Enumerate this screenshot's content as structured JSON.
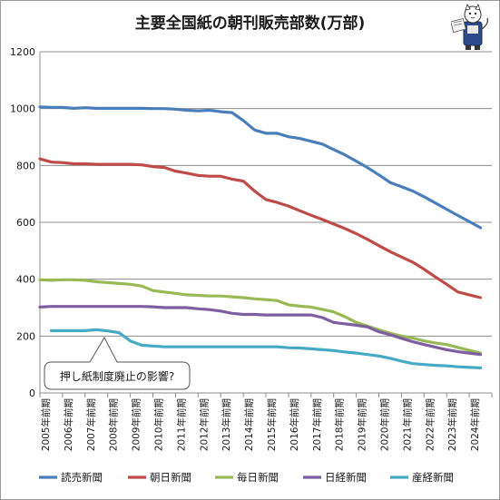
{
  "chart_data": {
    "type": "line",
    "title": "主要全国紙の朝刊販売部数(万部)",
    "ylim": [
      0,
      1200
    ],
    "yticks": [
      0,
      200,
      400,
      600,
      800,
      1000,
      1200
    ],
    "grid": true,
    "legend_position": "bottom",
    "x": [
      2005.0,
      2005.5,
      2006.0,
      2006.5,
      2007.0,
      2007.5,
      2008.0,
      2008.5,
      2009.0,
      2009.5,
      2010.0,
      2010.5,
      2011.0,
      2011.5,
      2012.0,
      2012.5,
      2013.0,
      2013.5,
      2014.0,
      2014.5,
      2015.0,
      2015.5,
      2016.0,
      2016.5,
      2017.0,
      2017.5,
      2018.0,
      2018.5,
      2019.0,
      2019.5,
      2020.0,
      2020.5,
      2021.0,
      2021.5,
      2022.0,
      2022.5,
      2023.0,
      2023.5,
      2024.0,
      2024.5
    ],
    "xtick_labels": [
      "2005年前期",
      "2006年前期",
      "2007年前期",
      "2008年前期",
      "2009年前期",
      "2010年前期",
      "2011年前期",
      "2012年前期",
      "2013年前期",
      "2014年前期",
      "2015年前期",
      "2016年前期",
      "2017年前期",
      "2018年前期",
      "2019年前期",
      "2020年前期",
      "2021年前期",
      "2022年前期",
      "2023年前期",
      "2024年前期"
    ],
    "series": [
      {
        "name": "読売新聞",
        "color": "#4a7ebb",
        "values": [
          1006,
          1004,
          1004,
          1001,
          1003,
          1001,
          1001,
          1001,
          1001,
          1001,
          1000,
          1000,
          998,
          994,
          992,
          994,
          989,
          986,
          958,
          925,
          913,
          913,
          901,
          895,
          885,
          875,
          856,
          837,
          815,
          792,
          767,
          740,
          725,
          710,
          690,
          668,
          646,
          624,
          603,
          581
        ]
      },
      {
        "name": "朝日新聞",
        "color": "#be4b48",
        "values": [
          823,
          812,
          810,
          806,
          806,
          804,
          804,
          804,
          804,
          802,
          796,
          793,
          780,
          773,
          765,
          762,
          762,
          752,
          745,
          710,
          680,
          670,
          657,
          641,
          625,
          610,
          594,
          578,
          560,
          540,
          518,
          497,
          478,
          460,
          435,
          408,
          382,
          355,
          345,
          335
        ]
      },
      {
        "name": "毎日新聞",
        "color": "#98b954",
        "values": [
          398,
          396,
          398,
          398,
          396,
          391,
          388,
          385,
          382,
          376,
          360,
          355,
          350,
          345,
          343,
          341,
          341,
          338,
          335,
          331,
          328,
          325,
          310,
          305,
          302,
          294,
          285,
          268,
          248,
          235,
          222,
          210,
          200,
          193,
          183,
          176,
          170,
          160,
          150,
          140
        ]
      },
      {
        "name": "日経新聞",
        "color": "#7d5fa0",
        "values": [
          302,
          304,
          304,
          304,
          304,
          304,
          304,
          304,
          304,
          304,
          303,
          300,
          300,
          300,
          296,
          293,
          288,
          280,
          276,
          276,
          274,
          274,
          274,
          274,
          274,
          265,
          248,
          243,
          238,
          232,
          215,
          205,
          192,
          180,
          170,
          161,
          152,
          145,
          140,
          135
        ]
      },
      {
        "name": "産経新聞",
        "color": "#46aac5",
        "values": [
          null,
          219,
          219,
          219,
          219,
          222,
          218,
          212,
          183,
          168,
          165,
          162,
          162,
          162,
          162,
          162,
          162,
          162,
          162,
          162,
          162,
          162,
          159,
          158,
          155,
          152,
          149,
          144,
          140,
          135,
          130,
          122,
          112,
          103,
          100,
          97,
          95,
          92,
          90,
          88
        ]
      }
    ],
    "annotation": "押し紙制度廃止の影響?"
  }
}
